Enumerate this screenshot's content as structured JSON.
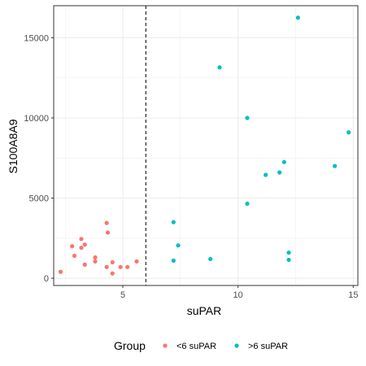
{
  "chart_data": {
    "type": "scatter",
    "title": "",
    "xlabel": "suPAR",
    "ylabel": "S100A8A9",
    "xlim": [
      2.0,
      15.2
    ],
    "ylim": [
      -450,
      17000
    ],
    "x_ticks": [
      5,
      10,
      15
    ],
    "y_ticks": [
      0,
      5000,
      10000,
      15000
    ],
    "grid": true,
    "reference_line": {
      "x": 6,
      "style": "dashed",
      "color": "#000000"
    },
    "legend": {
      "title": "Group",
      "placement": "bottom"
    },
    "series": [
      {
        "name": "<6 suPAR",
        "color": "#F8766D",
        "points": [
          {
            "x": 2.3,
            "y": 400
          },
          {
            "x": 2.8,
            "y": 2000
          },
          {
            "x": 2.9,
            "y": 1400
          },
          {
            "x": 3.2,
            "y": 2450
          },
          {
            "x": 3.2,
            "y": 1900
          },
          {
            "x": 3.35,
            "y": 2100
          },
          {
            "x": 3.35,
            "y": 850
          },
          {
            "x": 3.8,
            "y": 1300
          },
          {
            "x": 3.8,
            "y": 1050
          },
          {
            "x": 4.3,
            "y": 3450
          },
          {
            "x": 4.35,
            "y": 2850
          },
          {
            "x": 4.3,
            "y": 700
          },
          {
            "x": 4.55,
            "y": 1000
          },
          {
            "x": 4.55,
            "y": 300
          },
          {
            "x": 4.9,
            "y": 700
          },
          {
            "x": 5.2,
            "y": 700
          },
          {
            "x": 5.6,
            "y": 1050
          }
        ]
      },
      {
        "name": ">6 suPAR",
        "color": "#00BFC4",
        "points": [
          {
            "x": 7.2,
            "y": 3500
          },
          {
            "x": 7.2,
            "y": 1100
          },
          {
            "x": 7.4,
            "y": 2050
          },
          {
            "x": 8.8,
            "y": 1200
          },
          {
            "x": 9.2,
            "y": 13150
          },
          {
            "x": 10.4,
            "y": 10000
          },
          {
            "x": 10.4,
            "y": 4650
          },
          {
            "x": 11.2,
            "y": 6450
          },
          {
            "x": 11.8,
            "y": 6600
          },
          {
            "x": 12.0,
            "y": 7250
          },
          {
            "x": 12.2,
            "y": 1600
          },
          {
            "x": 12.2,
            "y": 1150
          },
          {
            "x": 12.6,
            "y": 16250
          },
          {
            "x": 14.2,
            "y": 7000
          },
          {
            "x": 14.8,
            "y": 9100
          }
        ]
      }
    ]
  }
}
